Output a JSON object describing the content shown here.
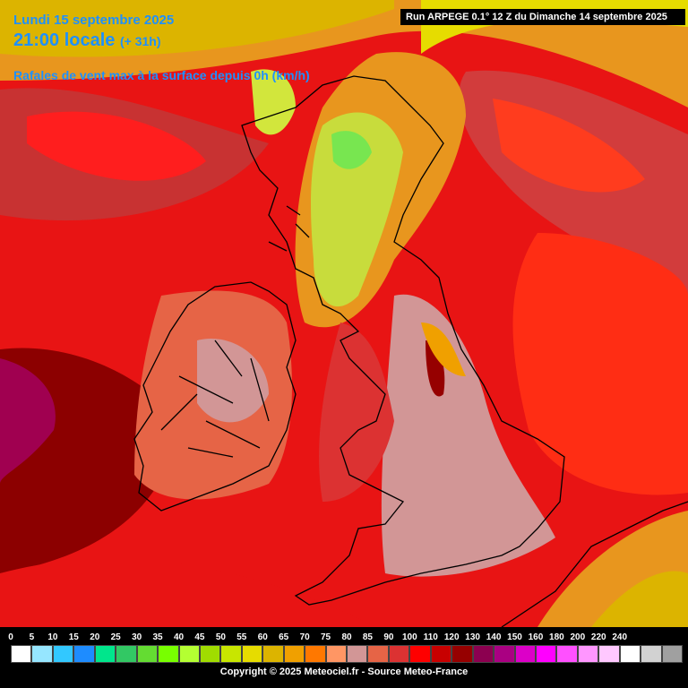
{
  "header": {
    "date": "Lundi 15 septembre 2025",
    "time": "21:00 locale",
    "lead": "(+ 31h)",
    "parameter": "Rafales de vent max à la surface depuis 0h (km/h)",
    "run": "Run ARPEGE 0.1° 12 Z du Dimanche 14 septembre 2025"
  },
  "legend": {
    "labels": [
      0,
      5,
      10,
      15,
      20,
      25,
      30,
      35,
      40,
      45,
      50,
      55,
      60,
      65,
      70,
      75,
      80,
      85,
      90,
      100,
      110,
      120,
      130,
      140,
      150,
      160,
      180,
      200,
      220,
      240
    ],
    "colors": [
      "#ffffff",
      "#96e6ff",
      "#32c8ff",
      "#1e8cff",
      "#00e68c",
      "#32c864",
      "#64dc32",
      "#78ff00",
      "#b4ff32",
      "#a0dc00",
      "#c8e600",
      "#e6dc00",
      "#dcb400",
      "#f0a000",
      "#ff7800",
      "#ff9664",
      "#d29696",
      "#e66446",
      "#dc3232",
      "#ff0000",
      "#c80000",
      "#960000",
      "#8c0050",
      "#aa0082",
      "#dc00c8",
      "#ff00ff",
      "#ff50ff",
      "#ff96ff",
      "#ffc8ff",
      "#ffffff",
      "#d2d2d2",
      "#a0a0a0"
    ]
  },
  "footer": {
    "copyright": "Copyright © 2025 Meteociel.fr - Source Meteo-France"
  }
}
